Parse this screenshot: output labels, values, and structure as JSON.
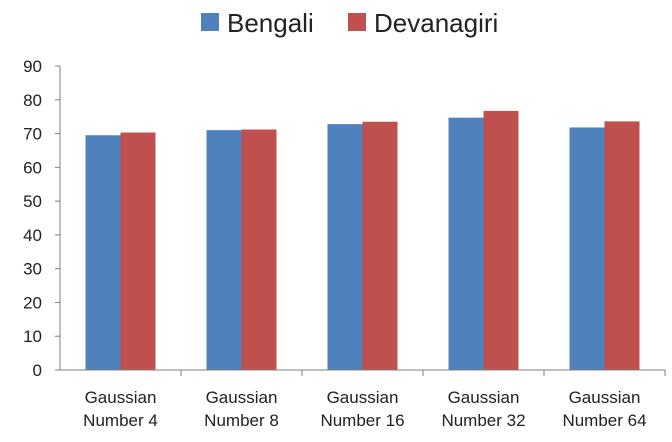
{
  "chart_data": {
    "type": "bar",
    "categories": [
      [
        "Gaussian",
        "Number 4"
      ],
      [
        "Gaussian",
        "Number 8"
      ],
      [
        "Gaussian",
        "Number 16"
      ],
      [
        "Gaussian",
        "Number 32"
      ],
      [
        "Gaussian",
        "Number 64"
      ]
    ],
    "series": [
      {
        "name": "Bengali",
        "color": "#4f81bd",
        "values": [
          69.5,
          71,
          72.8,
          74.7,
          71.8
        ]
      },
      {
        "name": "Devanagiri",
        "color": "#c0504d",
        "values": [
          70.3,
          71.2,
          73.5,
          76.7,
          73.6
        ]
      }
    ],
    "yticks": [
      0,
      10,
      20,
      30,
      40,
      50,
      60,
      70,
      80,
      90
    ],
    "ylim": [
      0,
      90
    ],
    "grid": false,
    "legend": "top-center"
  }
}
